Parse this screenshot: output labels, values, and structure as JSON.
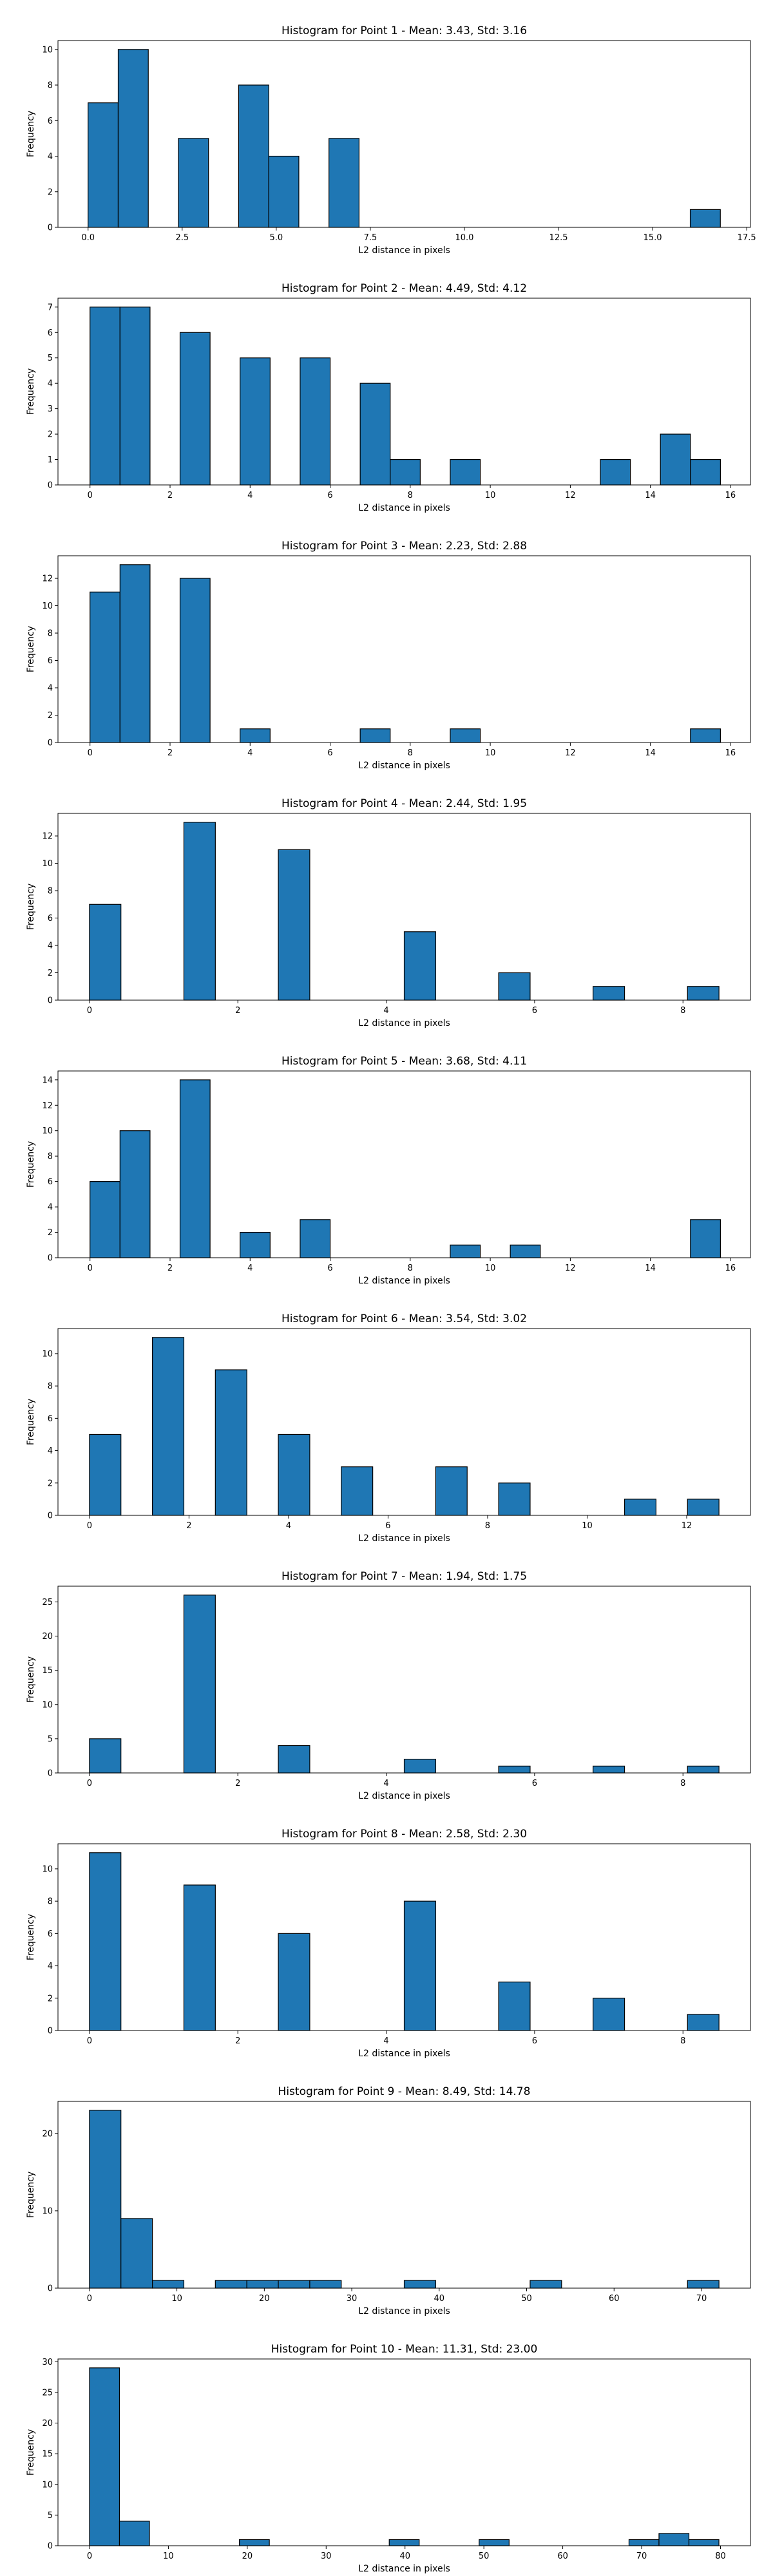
{
  "chart_data": [
    {
      "type": "bar",
      "title": "Histogram for Point 1 - Mean: 3.43, Std: 3.16",
      "xlabel": "L2 distance in pixels",
      "ylabel": "Frequency",
      "bin_edges": [
        0.0,
        0.8,
        1.6,
        2.4,
        3.2,
        4.0,
        4.8,
        5.6,
        6.4,
        7.2,
        8.0,
        8.8,
        9.6,
        10.4,
        11.2,
        12.0,
        12.8,
        13.6,
        14.4,
        15.2,
        16.0,
        16.8
      ],
      "counts": [
        7,
        10,
        0,
        5,
        0,
        8,
        4,
        0,
        5,
        0,
        0,
        0,
        0,
        0,
        0,
        0,
        0,
        0,
        0,
        0,
        1
      ],
      "xlim": [
        -0.8,
        17.6
      ],
      "ylim": [
        0,
        10.5
      ],
      "xticks": [
        0.0,
        2.5,
        5.0,
        7.5,
        10.0,
        12.5,
        15.0,
        17.5
      ],
      "xtick_labels": [
        "0.0",
        "2.5",
        "5.0",
        "7.5",
        "10.0",
        "12.5",
        "15.0",
        "17.5"
      ],
      "yticks": [
        0,
        2,
        4,
        6,
        8,
        10
      ],
      "ytick_labels": [
        "0",
        "2",
        "4",
        "6",
        "8",
        "10"
      ],
      "grid": false
    },
    {
      "type": "bar",
      "title": "Histogram for Point 2 - Mean: 4.49, Std: 4.12",
      "xlabel": "L2 distance in pixels",
      "ylabel": "Frequency",
      "bin_edges": [
        0.0,
        0.75,
        1.5,
        2.25,
        3.0,
        3.75,
        4.5,
        5.25,
        6.0,
        6.75,
        7.5,
        8.25,
        9.0,
        9.75,
        10.5,
        11.25,
        12.0,
        12.75,
        13.5,
        14.25,
        15.0,
        15.75
      ],
      "counts": [
        7,
        7,
        0,
        6,
        0,
        5,
        0,
        5,
        0,
        4,
        1,
        0,
        1,
        0,
        0,
        0,
        0,
        1,
        0,
        2,
        1
      ],
      "xlim": [
        -0.8,
        16.5
      ],
      "ylim": [
        0,
        7.35
      ],
      "xticks": [
        0,
        2,
        4,
        6,
        8,
        10,
        12,
        14,
        16
      ],
      "xtick_labels": [
        "0",
        "2",
        "4",
        "6",
        "8",
        "10",
        "12",
        "14",
        "16"
      ],
      "yticks": [
        0,
        1,
        2,
        3,
        4,
        5,
        6,
        7
      ],
      "ytick_labels": [
        "0",
        "1",
        "2",
        "3",
        "4",
        "5",
        "6",
        "7"
      ],
      "grid": false
    },
    {
      "type": "bar",
      "title": "Histogram for Point 3 - Mean: 2.23, Std: 2.88",
      "xlabel": "L2 distance in pixels",
      "ylabel": "Frequency",
      "bin_edges": [
        0.0,
        0.75,
        1.5,
        2.25,
        3.0,
        3.75,
        4.5,
        5.25,
        6.0,
        6.75,
        7.5,
        8.25,
        9.0,
        9.75,
        10.5,
        11.25,
        12.0,
        12.75,
        13.5,
        14.25,
        15.0,
        15.75
      ],
      "counts": [
        11,
        13,
        0,
        12,
        0,
        1,
        0,
        0,
        0,
        1,
        0,
        0,
        1,
        0,
        0,
        0,
        0,
        0,
        0,
        0,
        1
      ],
      "xlim": [
        -0.8,
        16.5
      ],
      "ylim": [
        0,
        13.65
      ],
      "xticks": [
        0,
        2,
        4,
        6,
        8,
        10,
        12,
        14,
        16
      ],
      "xtick_labels": [
        "0",
        "2",
        "4",
        "6",
        "8",
        "10",
        "12",
        "14",
        "16"
      ],
      "yticks": [
        0,
        2,
        4,
        6,
        8,
        10,
        12
      ],
      "ytick_labels": [
        "0",
        "2",
        "4",
        "6",
        "8",
        "10",
        "12"
      ],
      "grid": false
    },
    {
      "type": "bar",
      "title": "Histogram for Point 4 - Mean: 2.44, Std: 1.95",
      "xlabel": "L2 distance in pixels",
      "ylabel": "Frequency",
      "bin_edges": [
        0.0,
        0.4243,
        0.8485,
        1.2728,
        1.6971,
        2.1213,
        2.5456,
        2.9698,
        3.3941,
        3.8184,
        4.2426,
        4.6669,
        5.0912,
        5.5154,
        5.9397,
        6.364,
        6.7882,
        7.2125,
        7.6368,
        8.061,
        8.4853
      ],
      "counts": [
        7,
        0,
        0,
        13,
        0,
        0,
        11,
        0,
        0,
        0,
        5,
        0,
        0,
        2,
        0,
        0,
        1,
        0,
        0,
        1
      ],
      "xlim": [
        -0.4243,
        8.9096
      ],
      "ylim": [
        0,
        13.65
      ],
      "xticks": [
        0,
        2,
        4,
        6,
        8
      ],
      "xtick_labels": [
        "0",
        "2",
        "4",
        "6",
        "8"
      ],
      "yticks": [
        0,
        2,
        4,
        6,
        8,
        10,
        12
      ],
      "ytick_labels": [
        "0",
        "2",
        "4",
        "6",
        "8",
        "10",
        "12"
      ],
      "grid": false
    },
    {
      "type": "bar",
      "title": "Histogram for Point 5 - Mean: 3.68, Std: 4.11",
      "xlabel": "L2 distance in pixels",
      "ylabel": "Frequency",
      "bin_edges": [
        0.0,
        0.75,
        1.5,
        2.25,
        3.0,
        3.75,
        4.5,
        5.25,
        6.0,
        6.75,
        7.5,
        8.25,
        9.0,
        9.75,
        10.5,
        11.25,
        12.0,
        12.75,
        13.5,
        14.25,
        15.0,
        15.75
      ],
      "counts": [
        6,
        10,
        0,
        14,
        0,
        2,
        0,
        3,
        0,
        0,
        0,
        0,
        1,
        0,
        1,
        0,
        0,
        0,
        0,
        0,
        3
      ],
      "xlim": [
        -0.8,
        16.5
      ],
      "ylim": [
        0,
        14.7
      ],
      "xticks": [
        0,
        2,
        4,
        6,
        8,
        10,
        12,
        14,
        16
      ],
      "xtick_labels": [
        "0",
        "2",
        "4",
        "6",
        "8",
        "10",
        "12",
        "14",
        "16"
      ],
      "yticks": [
        0,
        2,
        4,
        6,
        8,
        10,
        12,
        14
      ],
      "ytick_labels": [
        "0",
        "2",
        "4",
        "6",
        "8",
        "10",
        "12",
        "14"
      ],
      "grid": false
    },
    {
      "type": "bar",
      "title": "Histogram for Point 6 - Mean: 3.54, Std: 3.02",
      "xlabel": "L2 distance in pixels",
      "ylabel": "Frequency",
      "bin_edges": [
        0.0,
        0.6325,
        1.2649,
        1.8974,
        2.5298,
        3.1623,
        3.7947,
        4.4272,
        5.0596,
        5.6921,
        6.3246,
        6.957,
        7.5895,
        8.2219,
        8.8544,
        9.4868,
        10.1193,
        10.7517,
        11.3842,
        12.0167,
        12.6491
      ],
      "counts": [
        5,
        0,
        11,
        0,
        9,
        0,
        5,
        0,
        3,
        0,
        0,
        3,
        0,
        2,
        0,
        0,
        0,
        1,
        0,
        1
      ],
      "xlim": [
        -0.6325,
        13.2816
      ],
      "ylim": [
        0,
        11.55
      ],
      "xticks": [
        0,
        2,
        4,
        6,
        8,
        10,
        12
      ],
      "xtick_labels": [
        "0",
        "2",
        "4",
        "6",
        "8",
        "10",
        "12"
      ],
      "yticks": [
        0,
        2,
        4,
        6,
        8,
        10
      ],
      "ytick_labels": [
        "0",
        "2",
        "4",
        "6",
        "8",
        "10"
      ],
      "grid": false
    },
    {
      "type": "bar",
      "title": "Histogram for Point 7 - Mean: 1.94, Std: 1.75",
      "xlabel": "L2 distance in pixels",
      "ylabel": "Frequency",
      "bin_edges": [
        0.0,
        0.4243,
        0.8485,
        1.2728,
        1.6971,
        2.1213,
        2.5456,
        2.9698,
        3.3941,
        3.8184,
        4.2426,
        4.6669,
        5.0912,
        5.5154,
        5.9397,
        6.364,
        6.7882,
        7.2125,
        7.6368,
        8.061,
        8.4853
      ],
      "counts": [
        5,
        0,
        0,
        26,
        0,
        0,
        4,
        0,
        0,
        0,
        2,
        0,
        0,
        1,
        0,
        0,
        1,
        0,
        0,
        1
      ],
      "xlim": [
        -0.4243,
        8.9096
      ],
      "ylim": [
        0,
        27.3
      ],
      "xticks": [
        0,
        2,
        4,
        6,
        8
      ],
      "xtick_labels": [
        "0",
        "2",
        "4",
        "6",
        "8"
      ],
      "yticks": [
        0,
        5,
        10,
        15,
        20,
        25
      ],
      "ytick_labels": [
        "0",
        "5",
        "10",
        "15",
        "20",
        "25"
      ],
      "grid": false
    },
    {
      "type": "bar",
      "title": "Histogram for Point 8 - Mean: 2.58, Std: 2.30",
      "xlabel": "L2 distance in pixels",
      "ylabel": "Frequency",
      "bin_edges": [
        0.0,
        0.4243,
        0.8485,
        1.2728,
        1.6971,
        2.1213,
        2.5456,
        2.9698,
        3.3941,
        3.8184,
        4.2426,
        4.6669,
        5.0912,
        5.5154,
        5.9397,
        6.364,
        6.7882,
        7.2125,
        7.6368,
        8.061,
        8.4853
      ],
      "counts": [
        11,
        0,
        0,
        9,
        0,
        0,
        6,
        0,
        0,
        0,
        8,
        0,
        0,
        3,
        0,
        0,
        2,
        0,
        0,
        1
      ],
      "xlim": [
        -0.4243,
        8.9096
      ],
      "ylim": [
        0,
        11.55
      ],
      "xticks": [
        0,
        2,
        4,
        6,
        8
      ],
      "xtick_labels": [
        "0",
        "2",
        "4",
        "6",
        "8"
      ],
      "yticks": [
        0,
        2,
        4,
        6,
        8,
        10
      ],
      "ytick_labels": [
        "0",
        "2",
        "4",
        "6",
        "8",
        "10"
      ],
      "grid": false
    },
    {
      "type": "bar",
      "title": "Histogram for Point 9 - Mean: 8.49, Std: 14.78",
      "xlabel": "L2 distance in pixels",
      "ylabel": "Frequency",
      "bin_edges": [
        0.0,
        3.6,
        7.2,
        10.8,
        14.4,
        18.0,
        21.6,
        25.2,
        28.8,
        32.4,
        36.0,
        39.6,
        43.2,
        46.8,
        50.4,
        54.0,
        57.6,
        61.2,
        64.8,
        68.4,
        72.0
      ],
      "counts": [
        23,
        9,
        1,
        0,
        1,
        1,
        1,
        1,
        0,
        0,
        1,
        0,
        0,
        0,
        1,
        0,
        0,
        0,
        0,
        1
      ],
      "xlim": [
        -3.6,
        75.6
      ],
      "ylim": [
        0,
        24.15
      ],
      "xticks": [
        0,
        10,
        20,
        30,
        40,
        50,
        60,
        70
      ],
      "xtick_labels": [
        "0",
        "10",
        "20",
        "30",
        "40",
        "50",
        "60",
        "70"
      ],
      "yticks": [
        0,
        10,
        20
      ],
      "ytick_labels": [
        "0",
        "10",
        "20"
      ],
      "grid": false
    },
    {
      "type": "bar",
      "title": "Histogram for Point 10 - Mean: 11.31, Std: 23.00",
      "xlabel": "L2 distance in pixels",
      "ylabel": "Frequency",
      "bin_edges": [
        0.0,
        3.8,
        7.6,
        11.4,
        15.2,
        19.0,
        22.8,
        26.6,
        30.4,
        34.2,
        38.0,
        41.8,
        45.6,
        49.4,
        53.2,
        57.0,
        60.8,
        64.6,
        68.4,
        72.2,
        76.0,
        79.8
      ],
      "counts": [
        29,
        4,
        0,
        0,
        0,
        1,
        0,
        0,
        0,
        0,
        1,
        0,
        0,
        1,
        0,
        0,
        0,
        0,
        1,
        2,
        1
      ],
      "xlim": [
        -4.0,
        83.8
      ],
      "ylim": [
        0,
        30.45
      ],
      "xticks": [
        0,
        10,
        20,
        30,
        40,
        50,
        60,
        70,
        80
      ],
      "xtick_labels": [
        "0",
        "10",
        "20",
        "30",
        "40",
        "50",
        "60",
        "70",
        "80"
      ],
      "yticks": [
        0,
        5,
        10,
        15,
        20,
        25,
        30
      ],
      "ytick_labels": [
        "0",
        "5",
        "10",
        "15",
        "20",
        "25",
        "30"
      ],
      "grid": false
    }
  ]
}
